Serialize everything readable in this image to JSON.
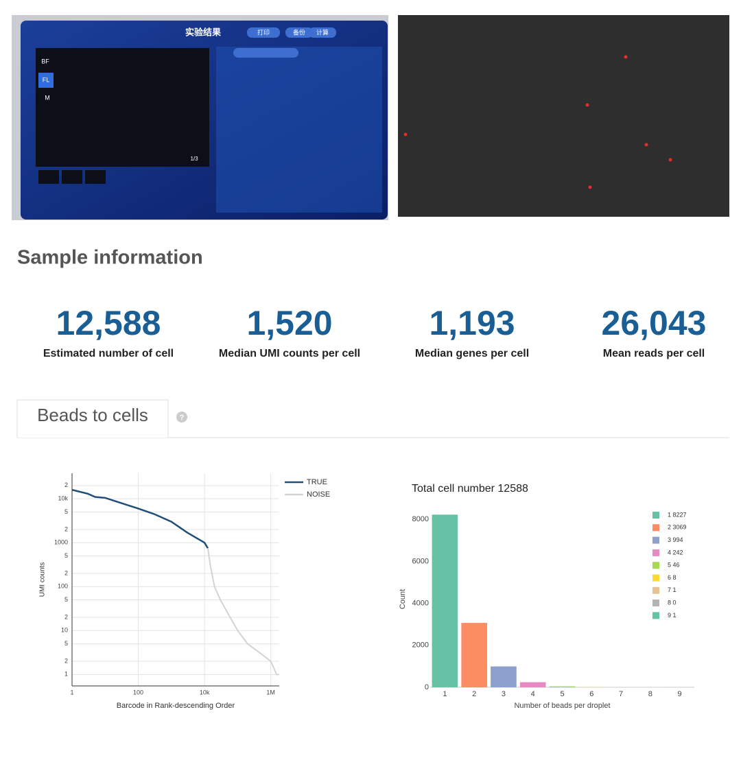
{
  "device_screen": {
    "title": "实验结果",
    "buttons": [
      "打印",
      "备份",
      "计算"
    ],
    "modes": [
      "BF",
      "FL",
      "M"
    ],
    "page": "1/3"
  },
  "sample_information": {
    "title": "Sample information",
    "metrics": [
      {
        "value": "12,588",
        "label": "Estimated number of cell"
      },
      {
        "value": "1,520",
        "label": "Median UMI counts per cell"
      },
      {
        "value": "1,193",
        "label": "Median genes per cell"
      },
      {
        "value": "26,043",
        "label": "Mean reads per cell"
      }
    ]
  },
  "tab": {
    "title": "Beads to cells",
    "help": "?"
  },
  "chart_data": [
    {
      "type": "line",
      "x_label": "Barcode in Rank-descending Order",
      "y_label": "UMI counts",
      "log_x": true,
      "log_y": true,
      "grid": true,
      "legend": "top-right",
      "xlim": [
        1,
        1800000
      ],
      "xticks": [
        1,
        100,
        {
          "value": 10000,
          "label": "10k"
        },
        {
          "value": 1000000,
          "label": "1M"
        }
      ],
      "ylim": [
        0.55,
        38000
      ],
      "yticks": [
        1,
        2,
        5,
        10,
        {
          "value": 20,
          "label": "2"
        },
        {
          "value": 50,
          "label": "5"
        },
        100,
        {
          "value": 200,
          "label": "2"
        },
        {
          "value": 500,
          "label": "5"
        },
        1000,
        {
          "value": 2000,
          "label": "2"
        },
        {
          "value": 5000,
          "label": "5"
        },
        {
          "value": 10000,
          "label": "10k"
        },
        {
          "value": 20000,
          "label": "2"
        }
      ],
      "series": [
        {
          "name": "TRUE",
          "color": "#1f4e79",
          "x": [
            1,
            3,
            5,
            10,
            30,
            100,
            300,
            1000,
            3000,
            10000,
            12588
          ],
          "values": [
            16000,
            13000,
            11000,
            10500,
            8000,
            6000,
            4500,
            3000,
            1700,
            1000,
            750
          ]
        },
        {
          "name": "NOISE",
          "color": "#d3d3d3",
          "x": [
            12588,
            15000,
            20000,
            30000,
            50000,
            100000,
            200000,
            500000,
            1000000,
            1500000,
            1800000
          ],
          "values": [
            750,
            300,
            100,
            50,
            25,
            10,
            5,
            3,
            2,
            1,
            1
          ]
        }
      ]
    },
    {
      "type": "bar",
      "title": "Total cell number 12588",
      "x_label": "Number of beads per droplet",
      "y_label": "Count",
      "categories": [
        "1",
        "2",
        "3",
        "4",
        "5",
        "6",
        "7",
        "8",
        "9"
      ],
      "values": [
        8227,
        3069,
        994,
        242,
        46,
        8,
        1,
        0,
        1
      ],
      "colors": [
        "#66c2a5",
        "#fc8d62",
        "#8da0cb",
        "#e78ac3",
        "#a6d854",
        "#ffd92f",
        "#e5c494",
        "#b3b3b3",
        "#66c2a5"
      ],
      "legend_labels": [
        "1 8227",
        "2 3069",
        "3 994",
        "4 242",
        "5 46",
        "6 8",
        "7 1",
        "8 0",
        "9 1"
      ],
      "legend": "top-right",
      "ylim": [
        0,
        8400
      ],
      "yticks": [
        0,
        2000,
        4000,
        6000,
        8000
      ],
      "grid": false
    }
  ]
}
